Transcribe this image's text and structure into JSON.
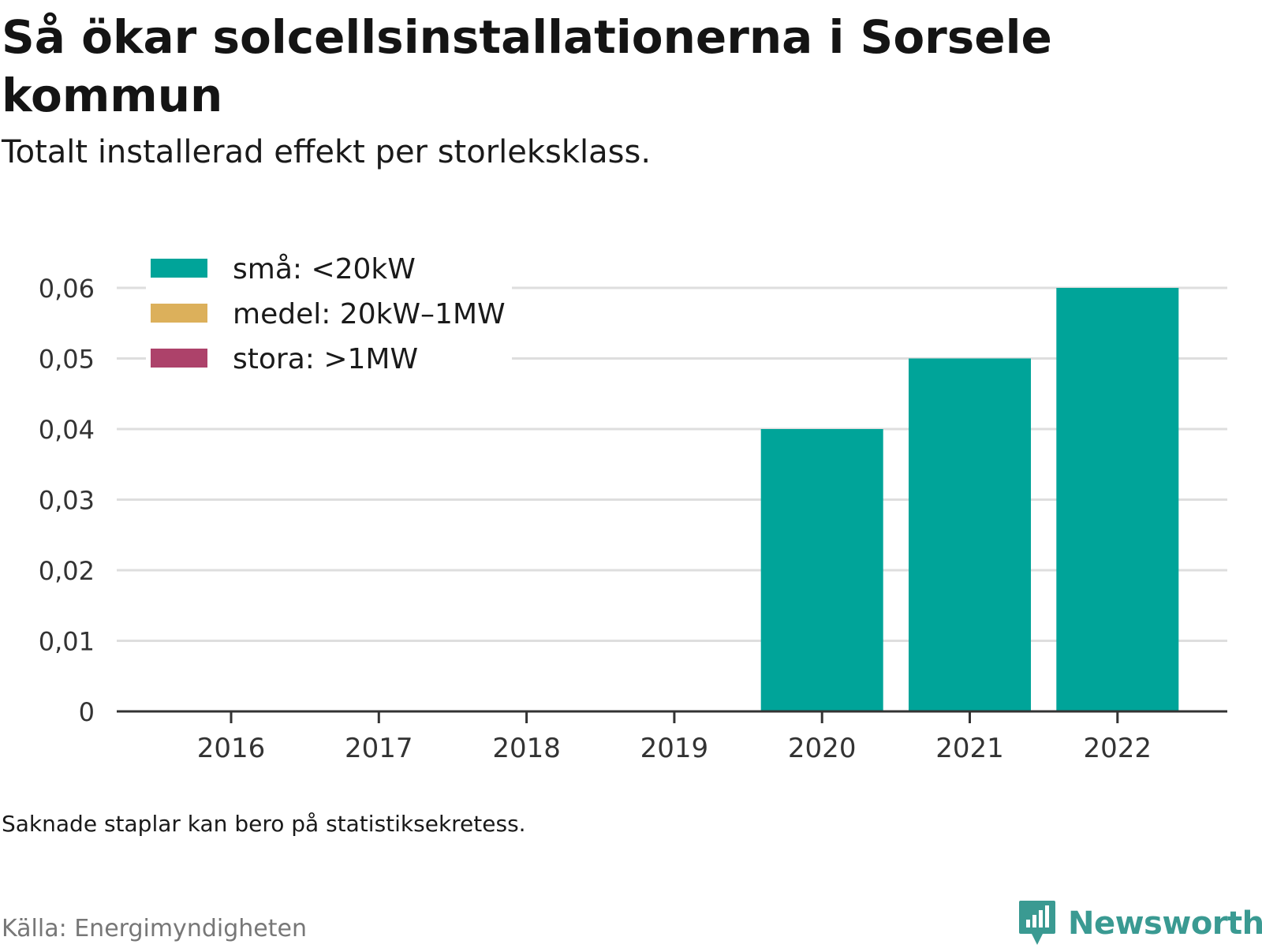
{
  "title": "Så ökar solcellsinstallationerna i Sorsele kommun",
  "subtitle": "Totalt installerad effekt per storleksklass.",
  "note": "Saknade staplar kan bero på statistiksekretess.",
  "source": "Källa: Energimyndigheten",
  "brand": {
    "name": "Newsworthy",
    "icon": "newsworthy-logo-icon",
    "color": "#3a9a92"
  },
  "chart_data": {
    "type": "bar",
    "stacked": true,
    "categories": [
      "2016",
      "2017",
      "2018",
      "2019",
      "2020",
      "2021",
      "2022"
    ],
    "series": [
      {
        "name": "små: <20kW",
        "color": "#00a499",
        "values": [
          0,
          0,
          0,
          0,
          0.04,
          0.05,
          0.06
        ]
      },
      {
        "name": "medel: 20kW–1MW",
        "color": "#dcb05b",
        "values": [
          0,
          0,
          0,
          0,
          0,
          0,
          0
        ]
      },
      {
        "name": "stora: >1MW",
        "color": "#ad426a",
        "values": [
          0,
          0,
          0,
          0,
          0,
          0,
          0
        ]
      }
    ],
    "yticks": [
      0,
      0.01,
      0.02,
      0.03,
      0.04,
      0.05,
      0.06
    ],
    "ytick_labels": [
      "0",
      "0,01",
      "0,02",
      "0,03",
      "0,04",
      "0,05",
      "0,06"
    ],
    "ylim": [
      0,
      0.06
    ],
    "grid": true,
    "legend": "top-left",
    "xlabel": "",
    "ylabel": ""
  }
}
